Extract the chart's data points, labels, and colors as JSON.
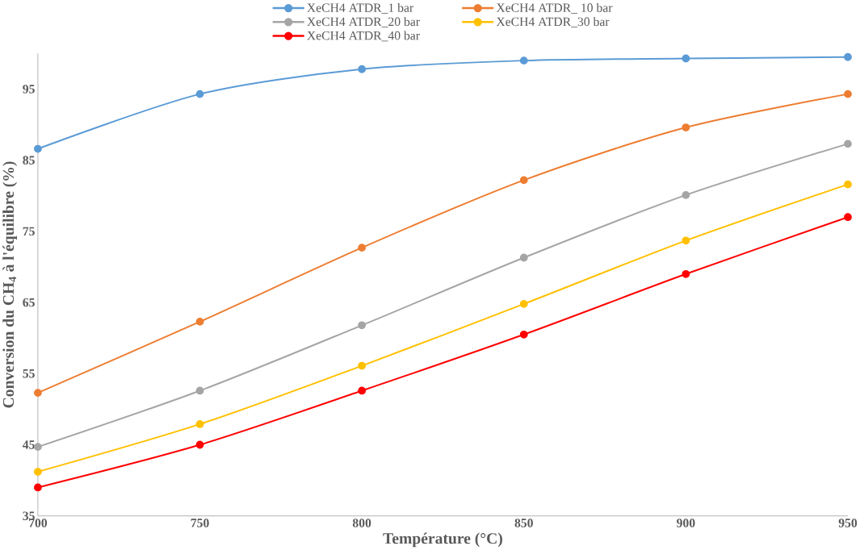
{
  "chart_data": {
    "type": "line",
    "xlabel": "Température (°C)",
    "ylabel": "Conversion du CH$_{4}$ à  l'équilibre (%)",
    "x": [
      700,
      750,
      800,
      850,
      900,
      950
    ],
    "series": [
      {
        "name": "XeCH4 ATDR_1 bar",
        "color": "#5b9bd5",
        "values": [
          86.6,
          94.3,
          97.8,
          99,
          99.3,
          99.5
        ]
      },
      {
        "name": "XeCH4 ATDR_ 10 bar",
        "color": "#ed7d31",
        "values": [
          52.3,
          62.3,
          72.7,
          82.2,
          89.6,
          94.3
        ]
      },
      {
        "name": "XeCH4 ATDR_20 bar",
        "color": "#a5a5a5",
        "values": [
          44.7,
          52.6,
          61.8,
          71.3,
          80.1,
          87.3
        ]
      },
      {
        "name": "XeCH4 ATDR_30 bar",
        "color": "#ffc000",
        "values": [
          41.2,
          47.9,
          56.1,
          64.8,
          73.7,
          81.6
        ]
      },
      {
        "name": "XeCH4 ATDR_40 bar",
        "color": "#ff0000",
        "values": [
          39,
          45,
          52.6,
          60.5,
          69,
          77
        ]
      }
    ],
    "xlim": [
      700,
      950
    ],
    "xticks": [
      700,
      750,
      800,
      850,
      900,
      950
    ],
    "ylim": [
      35,
      100
    ],
    "yticks": [
      35,
      45,
      55,
      65,
      75,
      85,
      95
    ],
    "grid": false,
    "legend": "top",
    "marker": "circle",
    "line_style": "solid"
  }
}
